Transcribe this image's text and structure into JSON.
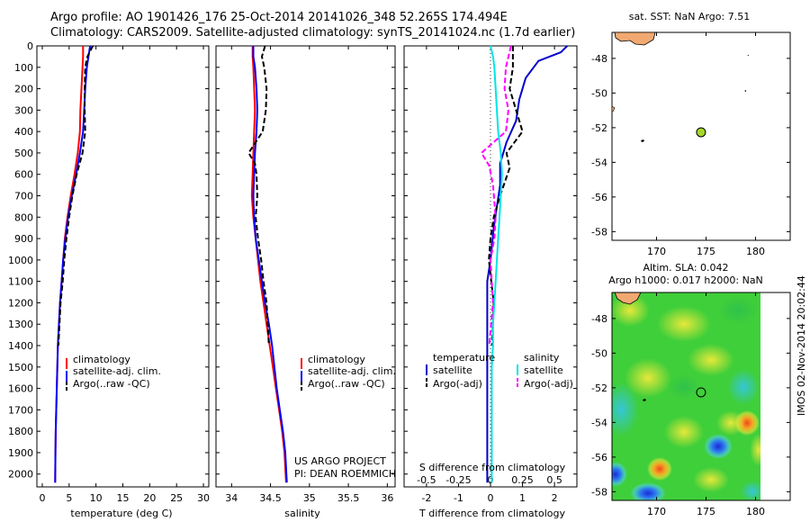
{
  "header": {
    "line1": "Argo profile: AO 1901426_176 25-Oct-2014 20141026_348 52.265S 174.494E",
    "line2": "Climatology: CARS2009. Satellite-adjusted climatology: synTS_20141024.nc (1.7d earlier)"
  },
  "side_text": "IMOS 02-Nov-2014 20:02:44",
  "colors": {
    "climatology": "#ff0000",
    "satellite": "#0000ff",
    "argo": "#000000",
    "t_satellite": "#0000cc",
    "s_satellite": "#00e5e5",
    "s_argo": "#ff00ff",
    "land": "#f2a971",
    "float_marker": "#a6d62b"
  },
  "chart_data": [
    {
      "type": "line",
      "id": "temperature",
      "xlabel": "temperature (deg C)",
      "ylabel": "",
      "xlim": [
        -1,
        31
      ],
      "ylim": [
        2060,
        0
      ],
      "xticks": [
        0,
        5,
        10,
        15,
        20,
        25,
        30
      ],
      "yticks": [
        0,
        100,
        200,
        300,
        400,
        500,
        600,
        700,
        800,
        900,
        1000,
        1100,
        1200,
        1300,
        1400,
        1500,
        1600,
        1700,
        1800,
        1900,
        2000
      ],
      "legend": [
        "climatology",
        "satellite-adj. clim.",
        "Argo(..raw -QC)"
      ],
      "series": [
        {
          "name": "climatology",
          "color": "#ff0000",
          "style": "solid",
          "x": [
            7.6,
            7.6,
            7.5,
            7.3,
            7.1,
            7.0,
            6.6,
            6.0,
            5.3,
            4.7,
            4.2,
            3.9,
            3.6,
            3.3,
            3.1,
            2.9,
            2.8,
            2.7,
            2.6,
            2.5,
            2.45,
            2.4
          ],
          "y": [
            0,
            50,
            100,
            200,
            300,
            400,
            500,
            600,
            700,
            800,
            900,
            1000,
            1100,
            1200,
            1300,
            1400,
            1500,
            1600,
            1700,
            1800,
            1900,
            2040
          ]
        },
        {
          "name": "satellite-adj. clim.",
          "color": "#0000ff",
          "style": "solid",
          "x": [
            8.9,
            8.6,
            8.3,
            8.0,
            7.8,
            7.6,
            7.0,
            6.3,
            5.5,
            4.8,
            4.3,
            3.9,
            3.6,
            3.3,
            3.1,
            2.9,
            2.8,
            2.7,
            2.6,
            2.5,
            2.45,
            2.4
          ],
          "y": [
            0,
            50,
            100,
            200,
            300,
            400,
            500,
            600,
            700,
            800,
            900,
            1000,
            1100,
            1200,
            1300,
            1400,
            1500,
            1600,
            1700,
            1800,
            1900,
            2040
          ]
        },
        {
          "name": "Argo(..raw -QC)",
          "color": "#000000",
          "style": "dashed",
          "x": [
            9.4,
            8.4,
            8.0,
            7.9,
            7.9,
            8.0,
            7.5,
            6.4,
            5.6,
            5.0,
            4.5,
            4.1,
            3.8,
            3.4,
            3.2,
            3.0
          ],
          "y": [
            0,
            50,
            100,
            200,
            300,
            400,
            500,
            600,
            700,
            800,
            900,
            1000,
            1100,
            1200,
            1300,
            1400
          ]
        }
      ]
    },
    {
      "type": "line",
      "id": "salinity",
      "xlabel": "salinity",
      "ylabel": "",
      "xlim": [
        33.8,
        36.1
      ],
      "ylim": [
        2060,
        0
      ],
      "xticks": [
        34,
        34.5,
        35,
        35.5,
        36
      ],
      "legend": [
        "climatology",
        "satellite-adj. clim.",
        "Argo(..raw -QC)"
      ],
      "series": [
        {
          "name": "climatology",
          "color": "#ff0000",
          "style": "solid",
          "x": [
            34.27,
            34.27,
            34.28,
            34.29,
            34.3,
            34.29,
            34.28,
            34.27,
            34.26,
            34.28,
            34.31,
            34.34,
            34.37,
            34.41,
            34.45,
            34.49,
            34.53,
            34.57,
            34.61,
            34.65,
            34.68,
            34.7
          ],
          "y": [
            0,
            50,
            100,
            200,
            300,
            400,
            500,
            600,
            700,
            800,
            900,
            1000,
            1100,
            1200,
            1300,
            1400,
            1500,
            1600,
            1700,
            1800,
            1900,
            2040
          ]
        },
        {
          "name": "satellite-adj. clim.",
          "color": "#0000ff",
          "style": "solid",
          "x": [
            34.28,
            34.28,
            34.3,
            34.32,
            34.33,
            34.32,
            34.3,
            34.29,
            34.28,
            34.29,
            34.31,
            34.35,
            34.39,
            34.43,
            34.48,
            34.52,
            34.55,
            34.58,
            34.62,
            34.66,
            34.69,
            34.71
          ],
          "y": [
            0,
            50,
            100,
            200,
            300,
            400,
            500,
            600,
            700,
            800,
            900,
            1000,
            1100,
            1200,
            1300,
            1400,
            1500,
            1600,
            1700,
            1800,
            1900,
            2040
          ]
        },
        {
          "name": "Argo(..raw -QC)",
          "color": "#000000",
          "style": "dashed",
          "x": [
            34.43,
            34.39,
            34.42,
            34.45,
            34.44,
            34.4,
            34.22,
            34.3,
            34.32,
            34.33,
            34.31,
            34.34,
            34.38,
            34.41,
            34.45,
            34.48
          ],
          "y": [
            0,
            50,
            100,
            200,
            300,
            400,
            500,
            550,
            600,
            700,
            800,
            900,
            1000,
            1100,
            1200,
            1400
          ]
        }
      ]
    },
    {
      "type": "line",
      "id": "differences",
      "xlabel": "T difference from climatology",
      "xlabel_top": "S difference from climatology",
      "xlim": [
        -2.7,
        2.7
      ],
      "ylim": [
        2060,
        0
      ],
      "xticks": [
        -2,
        -1,
        0,
        1,
        2
      ],
      "xticks_s": [
        -0.5,
        -0.25,
        0,
        0.25,
        0.5
      ],
      "legend_titles": [
        "temperature",
        "salinity"
      ],
      "legend": [
        "satellite",
        "Argo(-adj)",
        "satellite",
        "Argo(-adj)"
      ],
      "series": [
        {
          "name": "satellite",
          "group": "temperature",
          "color": "#0000cc",
          "style": "solid",
          "x": [
            2.4,
            2.2,
            1.5,
            1.1,
            0.9,
            0.8,
            0.5,
            0.3,
            0.3,
            0.2,
            0.1,
            0.0,
            -0.1,
            -0.1,
            -0.1,
            -0.1,
            -0.1,
            -0.1,
            -0.1,
            -0.1,
            -0.1
          ],
          "y": [
            0,
            30,
            70,
            150,
            250,
            350,
            450,
            550,
            650,
            750,
            850,
            1000,
            1100,
            1200,
            1300,
            1400,
            1500,
            1600,
            1700,
            1800,
            2040
          ]
        },
        {
          "name": "Argo(-adj)",
          "group": "temperature",
          "color": "#000000",
          "style": "dashed",
          "x": [
            0.7,
            0.7,
            0.6,
            0.8,
            1.0,
            0.5,
            0.6,
            0.3,
            0.1,
            0.0,
            -0.05,
            0.1,
            0.05
          ],
          "y": [
            0,
            100,
            200,
            300,
            400,
            500,
            570,
            700,
            800,
            900,
            1000,
            1200,
            1400
          ]
        },
        {
          "name": "satellite",
          "group": "salinity",
          "color": "#00e5e5",
          "style": "solid",
          "x": [
            0.0,
            0.02,
            0.03,
            0.04,
            0.05,
            0.06,
            0.08,
            0.09,
            0.08,
            0.07,
            0.06,
            0.05,
            0.04,
            0.03,
            0.02,
            0.02,
            0.01,
            0.01,
            0.01,
            0.01,
            0.01
          ],
          "y": [
            0,
            50,
            100,
            200,
            300,
            400,
            500,
            600,
            700,
            800,
            900,
            1000,
            1100,
            1200,
            1300,
            1400,
            1500,
            1600,
            1700,
            1800,
            2040
          ]
        },
        {
          "name": "Argo(-adj)",
          "group": "salinity",
          "color": "#ff00ff",
          "style": "dashed",
          "x": [
            0.16,
            0.12,
            0.11,
            0.14,
            0.12,
            -0.07,
            -0.01,
            0.02,
            0.04,
            0.03,
            0.0,
            0.02,
            -0.01
          ],
          "y": [
            0,
            100,
            200,
            300,
            400,
            500,
            560,
            650,
            800,
            900,
            1000,
            1200,
            1400
          ]
        }
      ]
    },
    {
      "type": "heatmap",
      "id": "sst-map",
      "title": "sat. SST: NaN Argo: 7.51",
      "xticks": [
        170,
        175,
        180
      ],
      "yticks": [
        -48,
        -50,
        -52,
        -54,
        -56,
        -58
      ],
      "xlim": [
        165.5,
        183.5
      ],
      "ylim": [
        -58.5,
        -46.5
      ],
      "float_position": [
        174.494,
        -52.265
      ]
    },
    {
      "type": "heatmap",
      "id": "sla-map",
      "title_line1": "Altim. SLA: 0.042",
      "title_line2": "Argo h1000: 0.017 h2000: NaN",
      "xticks": [
        170,
        175,
        180
      ],
      "yticks": [
        -48,
        -50,
        -52,
        -54,
        -56,
        -58
      ],
      "xlim": [
        165.5,
        183.5
      ],
      "ylim": [
        -58.5,
        -46.5
      ],
      "float_position": [
        174.494,
        -52.265
      ]
    }
  ]
}
